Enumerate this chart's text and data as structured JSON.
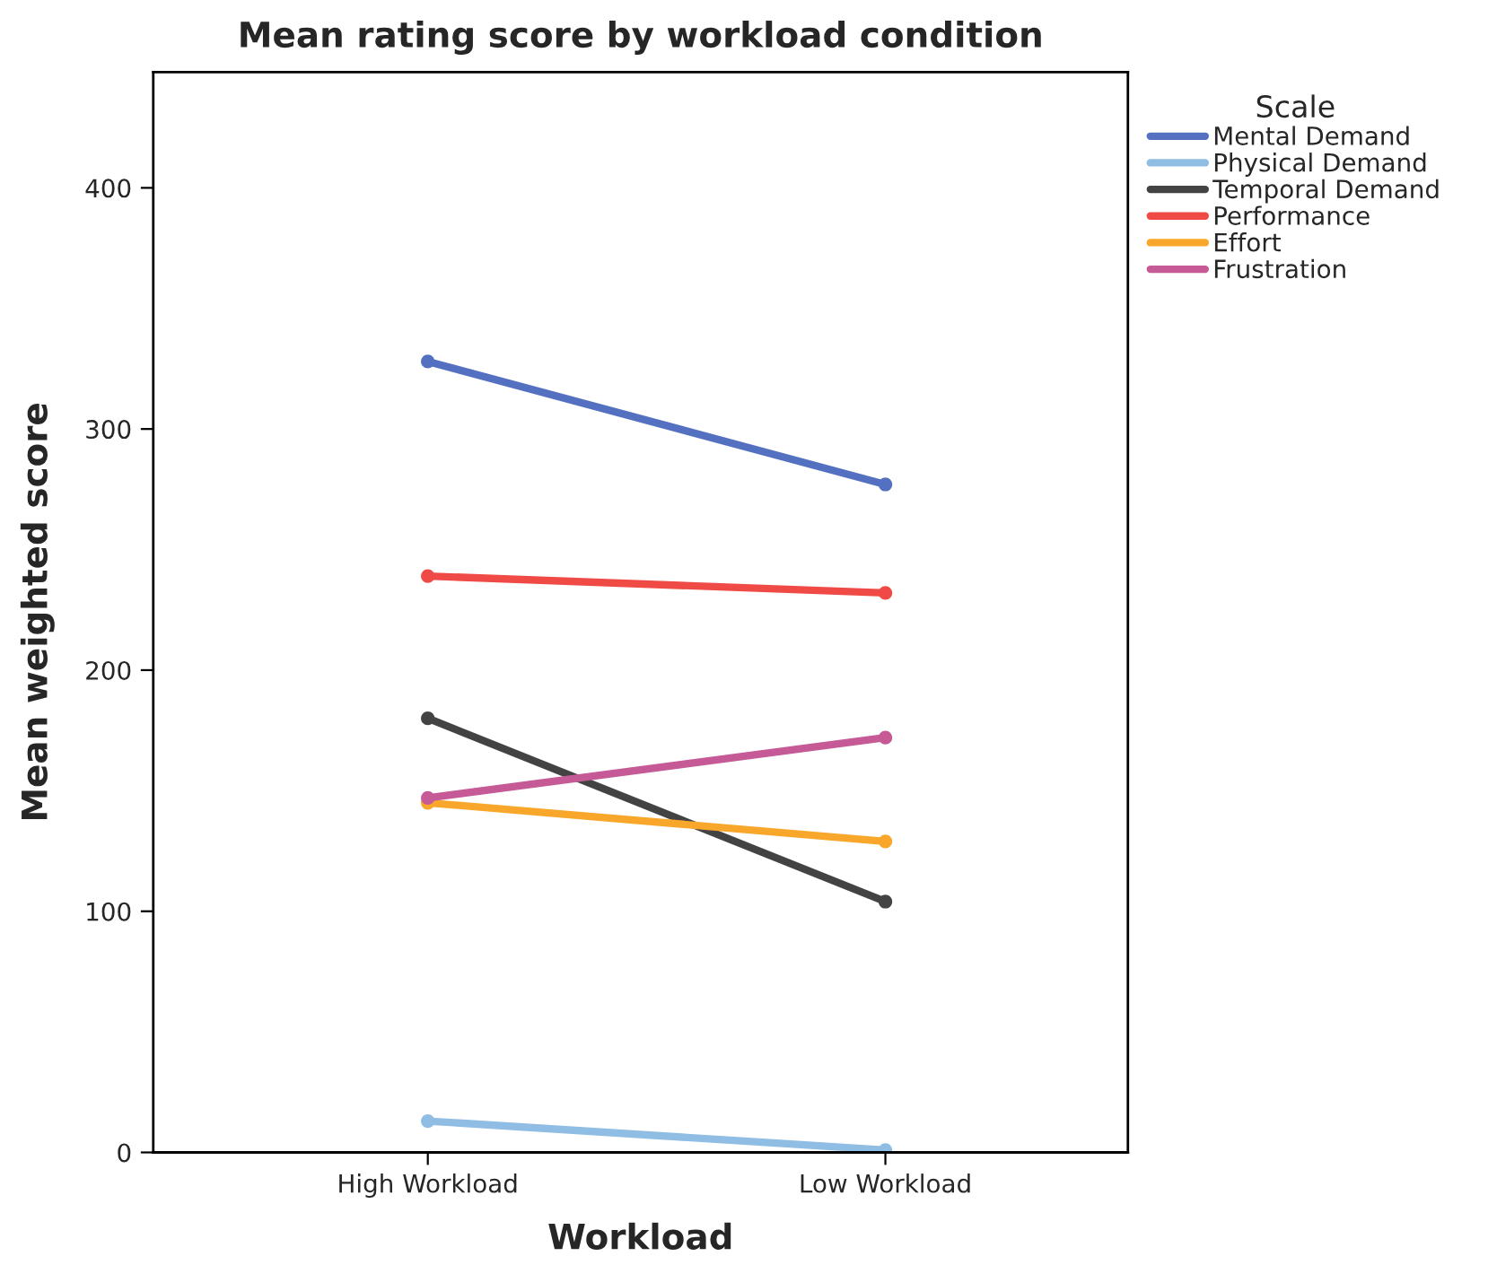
{
  "chart_data": {
    "type": "line",
    "title": "Mean rating score by workload condition",
    "xlabel": "Workload",
    "ylabel": "Mean weighted score",
    "legend_title": "Scale",
    "categories": [
      "High Workload",
      "Low Workload"
    ],
    "series": [
      {
        "name": "Mental Demand",
        "color": "#5470c0",
        "values": [
          328,
          277
        ]
      },
      {
        "name": "Physical Demand",
        "color": "#8fbde3",
        "values": [
          13,
          1
        ]
      },
      {
        "name": "Temporal Demand",
        "color": "#434343",
        "values": [
          180,
          104
        ]
      },
      {
        "name": "Performance",
        "color": "#f04a46",
        "values": [
          239,
          232
        ]
      },
      {
        "name": "Effort",
        "color": "#f9a72a",
        "values": [
          145,
          129
        ]
      },
      {
        "name": "Frustration",
        "color": "#c55a97",
        "values": [
          147,
          172
        ]
      }
    ],
    "ylim": [
      0,
      448
    ],
    "yticks": [
      0,
      100,
      200,
      300,
      400
    ],
    "grid": false,
    "legend": "top right",
    "marker": "circle",
    "line_style": "solid"
  }
}
